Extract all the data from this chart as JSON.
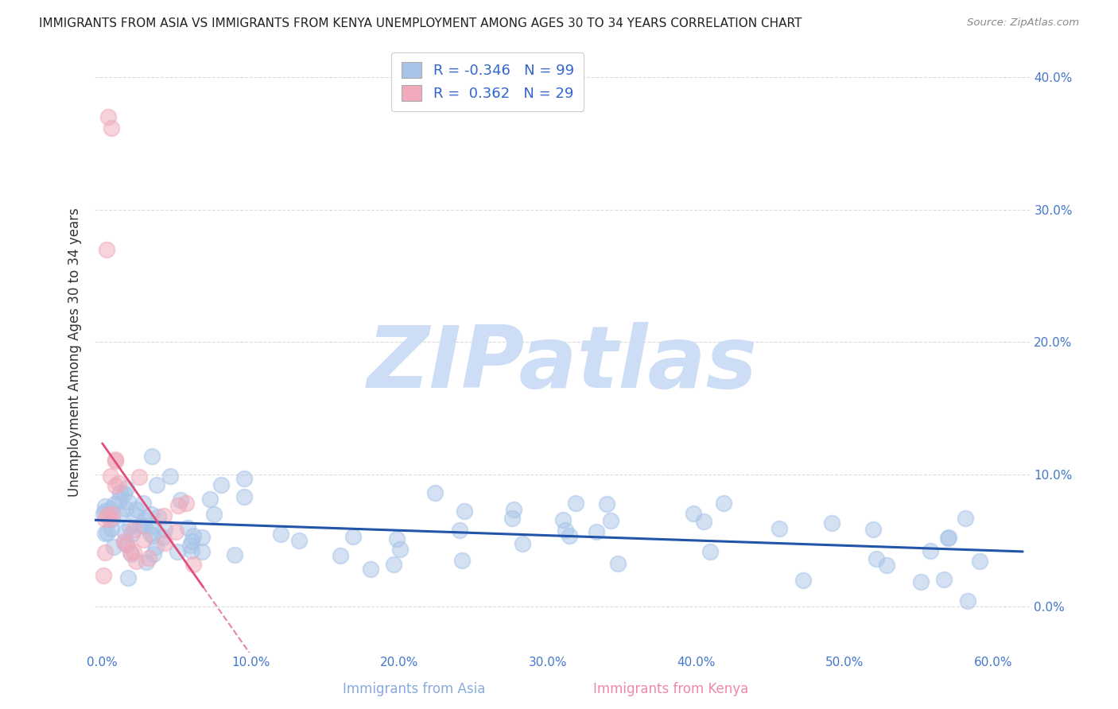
{
  "title": "IMMIGRANTS FROM ASIA VS IMMIGRANTS FROM KENYA UNEMPLOYMENT AMONG AGES 30 TO 34 YEARS CORRELATION CHART",
  "source": "Source: ZipAtlas.com",
  "ylabel": "Unemployment Among Ages 30 to 34 years",
  "xlim": [
    -0.005,
    0.625
  ],
  "ylim": [
    -0.035,
    0.42
  ],
  "xticks": [
    0.0,
    0.1,
    0.2,
    0.3,
    0.4,
    0.5,
    0.6
  ],
  "xticklabels": [
    "0.0%",
    "10.0%",
    "20.0%",
    "30.0%",
    "40.0%",
    "50.0%",
    "60.0%"
  ],
  "yticks": [
    0.0,
    0.1,
    0.2,
    0.3,
    0.4
  ],
  "yticklabels_right": [
    "0.0%",
    "10.0%",
    "20.0%",
    "30.0%",
    "40.0%"
  ],
  "legend_R": [
    -0.346,
    0.362
  ],
  "legend_N": [
    99,
    29
  ],
  "blue_scatter_color": "#a8c4e8",
  "pink_scatter_color": "#f0aabb",
  "blue_line_color": "#2255aa",
  "pink_line_color": "#e0507a",
  "watermark": "ZIPatlas",
  "watermark_color": "#ccddf5",
  "grid_color": "#cccccc",
  "title_color": "#222222",
  "axis_label_color": "#333333",
  "tick_color": "#4477cc",
  "legend_text_color": "#3366cc",
  "source_color": "#888888",
  "bottom_label_asia_color": "#88aadd",
  "bottom_label_kenya_color": "#ee88aa"
}
